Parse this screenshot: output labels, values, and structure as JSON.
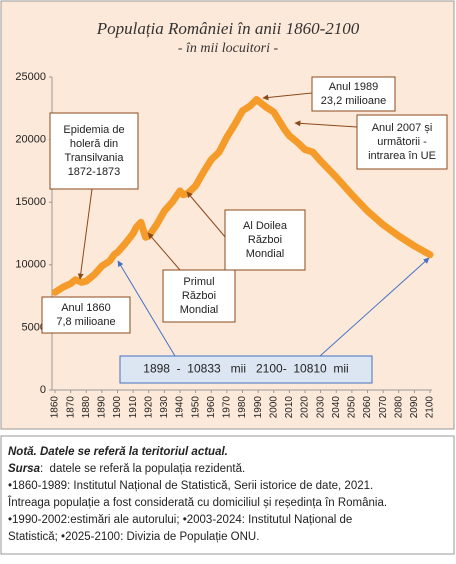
{
  "chart_data": {
    "type": "line",
    "title": "Populația României în anii 1860-2100",
    "subtitle": "- în mii locuitori -",
    "color": "#f59b2a",
    "x": [
      1860,
      1865,
      1870,
      1873,
      1877,
      1880,
      1885,
      1890,
      1895,
      1898,
      1900,
      1905,
      1910,
      1912,
      1915,
      1918,
      1920,
      1925,
      1930,
      1935,
      1940,
      1942,
      1945,
      1950,
      1955,
      1960,
      1965,
      1970,
      1975,
      1980,
      1985,
      1989,
      1990,
      1995,
      2000,
      2007,
      2010,
      2015,
      2020,
      2025,
      2030,
      2040,
      2050,
      2060,
      2070,
      2080,
      2090,
      2100
    ],
    "values": [
      7800,
      8200,
      8500,
      8800,
      8600,
      8700,
      9200,
      9900,
      10300,
      10833,
      11000,
      11700,
      12500,
      13000,
      13400,
      12200,
      12300,
      13200,
      14300,
      15000,
      15900,
      15600,
      15700,
      16300,
      17400,
      18400,
      19000,
      20200,
      21200,
      22300,
      22700,
      23200,
      23100,
      22600,
      22200,
      20800,
      20300,
      19800,
      19200,
      19000,
      18300,
      17000,
      15600,
      14300,
      13200,
      12300,
      11500,
      10810
    ],
    "xlim": [
      1860,
      2100
    ],
    "xticks": [
      1860,
      1870,
      1880,
      1890,
      1900,
      1910,
      1920,
      1930,
      1940,
      1950,
      1960,
      1970,
      1980,
      1990,
      2000,
      2010,
      2020,
      2030,
      2040,
      2050,
      2060,
      2070,
      2080,
      2090,
      2100
    ],
    "ylim": [
      0,
      25000
    ],
    "yticks": [
      0,
      5000,
      10000,
      15000,
      20000,
      25000
    ],
    "grid": false,
    "annotations": [
      [
        "Epidemia de",
        "holeră din",
        "Transilvania",
        "1872-1873"
      ],
      [
        "Anul 1860",
        "7,8 milioane"
      ],
      [
        "Primul",
        "Război",
        "Mondial"
      ],
      [
        "Al Doilea",
        "Război",
        "Mondial"
      ],
      [
        "Anul 1989",
        "23,2 milioane"
      ],
      [
        "Anul 2007 și",
        "următorii -",
        "intrarea în UE"
      ],
      [
        "1898  -  10833   mii   2100-  10810  mii"
      ]
    ]
  },
  "notes": {
    "title": "Notă. Datele se referă la teritoriul actual.",
    "source_label": "Sursa",
    "source_text": ":  datele se referă la populația rezidentă.",
    "lines": [
      "•1860-1989: Institutul Național de Statistică, Serii istorice de date, 2021.",
      "Întreaga populație a fost considerată cu domiciliul și reședința în România.",
      "•1990-2002:estimări ale autorului; •2003-2024: Institutul Național de",
      "Statistică; •2025-2100: Divizia de Populație ONU."
    ]
  }
}
